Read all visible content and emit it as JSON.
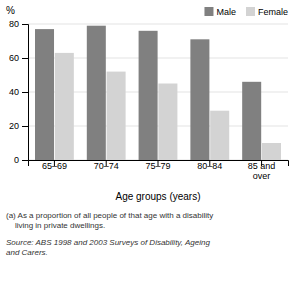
{
  "chart_data": {
    "type": "bar",
    "categories": [
      "65–69",
      "70–74",
      "75–79",
      "80–84",
      "85 and\nover"
    ],
    "series": [
      {
        "name": "Male",
        "color": "#808080",
        "values": [
          77,
          79,
          76,
          71,
          46
        ]
      },
      {
        "name": "Female",
        "color": "#d3d3d3",
        "values": [
          63,
          52,
          45,
          29,
          10
        ]
      }
    ],
    "ylim": [
      0,
      80
    ],
    "yticks": [
      0,
      20,
      40,
      60,
      80
    ],
    "ylabel": "%",
    "xlabel": "Age groups (years)",
    "grid": true,
    "legend": "top-right",
    "annotations": [
      "(a) As a proportion of all people of that age with a disability\n    living in private dwellings.",
      "Source: ABS 1998 and 2003 Surveys of Disability, Ageing\nand Carers."
    ]
  }
}
